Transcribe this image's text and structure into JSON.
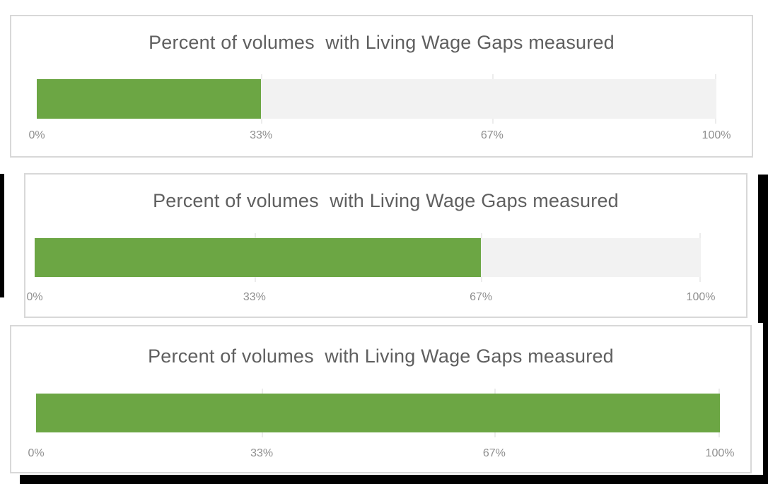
{
  "colors": {
    "bar_green": "#6ca644",
    "track_gray": "#f2f2f2",
    "panel_border": "#d8d8d8",
    "title_text": "#5f5f5f",
    "axis_text": "#8f8f8f",
    "backdrop_black": "#000000",
    "page_background": "#ffffff"
  },
  "chart_data": [
    {
      "type": "bar",
      "orientation": "horizontal",
      "title": "Percent of volumes  with Living Wage Gaps measured",
      "values": [
        33
      ],
      "value_display": "33%",
      "xlim": [
        0,
        100
      ],
      "xtick_labels": [
        "0%",
        "33%",
        "67%",
        "100%"
      ],
      "xtick_positions": [
        0,
        33,
        67,
        100
      ],
      "grid": "vertical tick stubs at 33/67/100",
      "legend": "none",
      "bar_color": "#6ca644",
      "track_color": "#f2f2f2"
    },
    {
      "type": "bar",
      "orientation": "horizontal",
      "title": "Percent of volumes  with Living Wage Gaps measured",
      "values": [
        67
      ],
      "value_display": "67%",
      "xlim": [
        0,
        100
      ],
      "xtick_labels": [
        "0%",
        "33%",
        "67%",
        "100%"
      ],
      "xtick_positions": [
        0,
        33,
        67,
        100
      ],
      "grid": "vertical tick stubs at 33/67/100",
      "legend": "none",
      "bar_color": "#6ca644",
      "track_color": "#f2f2f2"
    },
    {
      "type": "bar",
      "orientation": "horizontal",
      "title": "Percent of volumes  with Living Wage Gaps measured",
      "values": [
        100
      ],
      "value_display": "100%",
      "xlim": [
        0,
        100
      ],
      "xtick_labels": [
        "0%",
        "33%",
        "67%",
        "100%"
      ],
      "xtick_positions": [
        0,
        33,
        67,
        100
      ],
      "grid": "vertical tick stubs at 33/67/100",
      "legend": "none",
      "bar_color": "#6ca644",
      "track_color": "#f2f2f2"
    }
  ]
}
